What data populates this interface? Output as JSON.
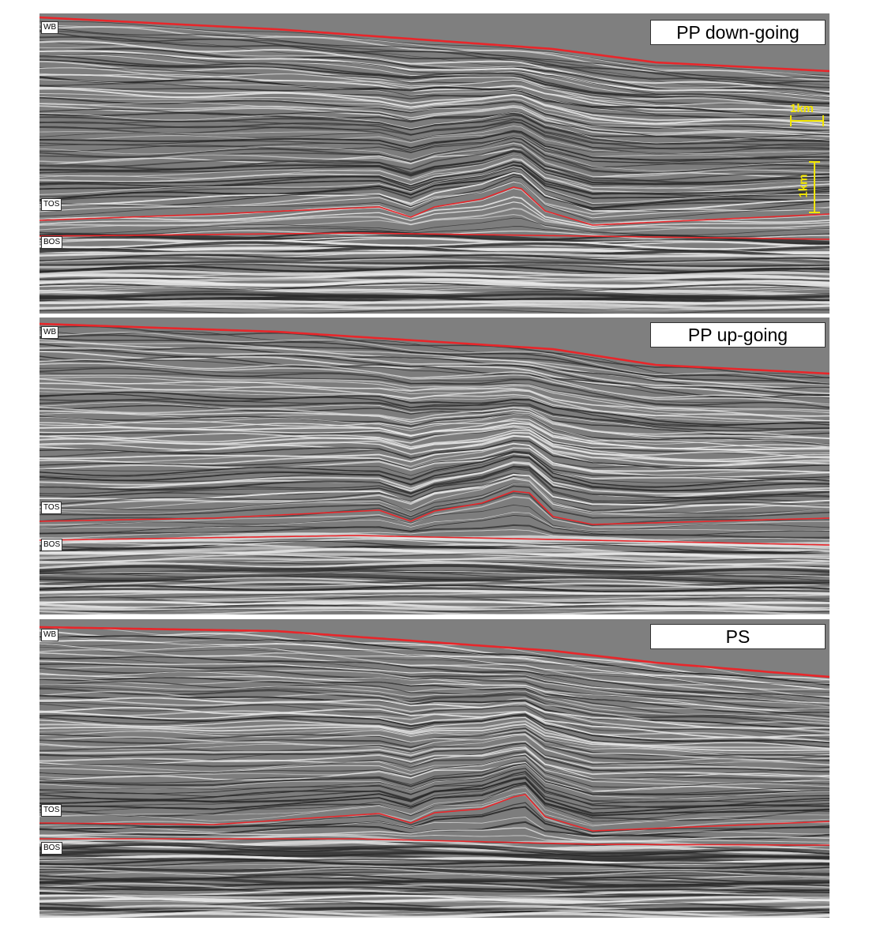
{
  "panels": [
    {
      "title": "PP down-going",
      "horizons": {
        "wb": "WB",
        "tos": "TOS",
        "bos": "BOS"
      }
    },
    {
      "title": "PP up-going",
      "horizons": {
        "wb": "WB",
        "tos": "TOS",
        "bos": "BOS"
      }
    },
    {
      "title": "PS",
      "horizons": {
        "wb": "WB",
        "tos": "TOS",
        "bos": "BOS"
      }
    }
  ],
  "scale": {
    "horizontal": "1km",
    "vertical": "1km"
  },
  "colors": {
    "horizon": "#e8262a",
    "scale_bar": "#f2e600",
    "background": "#808080"
  }
}
